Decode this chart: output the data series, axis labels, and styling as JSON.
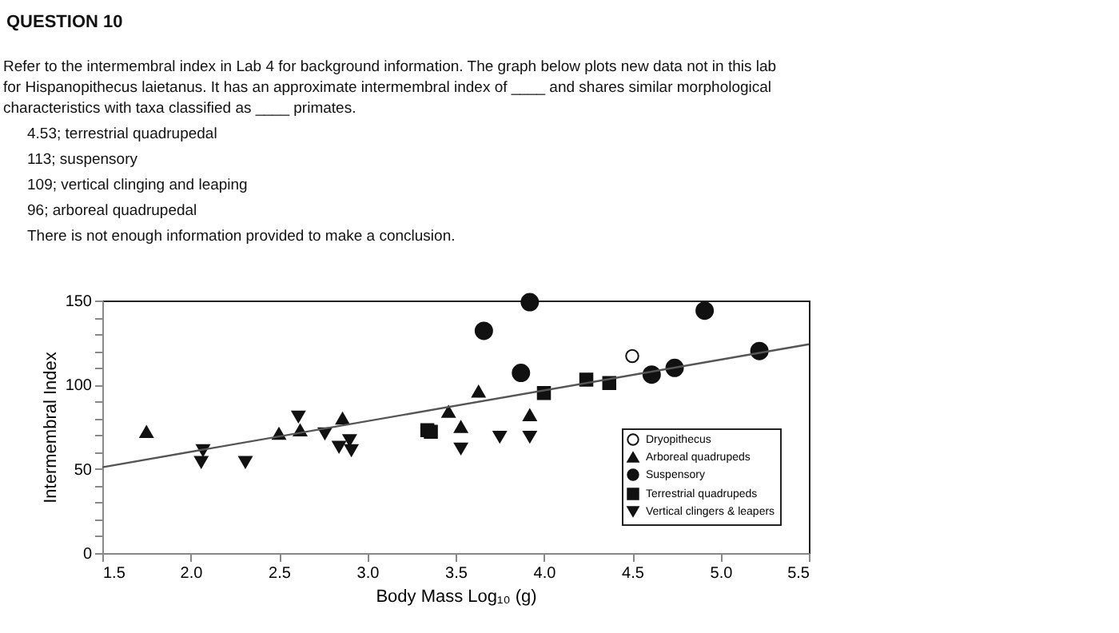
{
  "chart_data": {
    "type": "scatter",
    "title": "QUESTION 10",
    "subtitle": "Refer to the intermembral index in Lab 4 for background information. The graph below plots new data not in this lab for Hispanopithecus laietanus. It has an approximate intermembral index of ____ and shares similar morphological characteristics with taxa classified as ____ primates.",
    "annotations": [
      "4.53; terrestrial quadrupedal",
      "113; suspensory",
      "109; vertical clinging and leaping",
      "96; arboreal quadrupedal",
      "There is not enough information provided to make a conclusion."
    ],
    "xlabel": "Body Mass Log₁₀ (g)",
    "ylabel": "Intermembral Index",
    "series": [
      {
        "name": "Dryopithecus",
        "color": "#ffffff",
        "marker": "circle",
        "x": [
          4.5
        ],
        "values": [
          117
        ]
      },
      {
        "name": "Arboreal quadrupeds",
        "color": "#111111",
        "marker": "triangle",
        "x": [
          1.75,
          2.5,
          2.62,
          2.86,
          3.46,
          3.53,
          3.63,
          3.92
        ],
        "values": [
          72,
          71,
          73,
          80,
          84,
          75,
          96,
          82
        ]
      },
      {
        "name": "Suspensory",
        "color": "#111111",
        "marker": "circle",
        "x": [
          3.66,
          3.92,
          3.87,
          4.91,
          4.61,
          4.74,
          5.22
        ],
        "values": [
          132,
          149,
          107,
          144,
          106,
          110,
          120
        ]
      },
      {
        "name": "Terrestrial quadrupeds",
        "color": "#111111",
        "marker": "square",
        "x": [
          3.34,
          3.36,
          4.0,
          4.24,
          4.37
        ],
        "values": [
          73,
          72,
          95,
          103,
          101
        ]
      },
      {
        "name": "Vertical clingers & leapers",
        "color": "#111111",
        "marker": "triangle-down",
        "x": [
          2.07,
          2.06,
          2.31,
          2.61,
          2.76,
          2.84,
          2.9,
          2.91,
          3.53,
          3.75,
          3.92
        ],
        "values": [
          61,
          54,
          54,
          81,
          71,
          63,
          67,
          61,
          62,
          69,
          69
        ]
      },
      {
        "type": "line",
        "color": "#555555",
        "x": [
          1.5,
          5.5
        ],
        "values": [
          51,
          124
        ]
      }
    ],
    "xlim": [
      1.5,
      5.5
    ],
    "xticks": [
      1.5,
      {
        "value": 2,
        "label": "2.0"
      },
      2.5,
      {
        "value": 3,
        "label": "3.0"
      },
      3.5,
      {
        "value": 4,
        "label": "4.0"
      },
      4.5,
      {
        "value": 5,
        "label": "5.0"
      },
      5.5
    ],
    "ylim": [
      0,
      150
    ],
    "yticks": [
      0,
      {
        "value": 10,
        "label": null
      },
      {
        "value": 20,
        "label": null
      },
      {
        "value": 30,
        "label": null
      },
      {
        "value": 40,
        "label": null
      },
      50,
      {
        "value": 60,
        "label": null
      },
      {
        "value": 70,
        "label": null
      },
      {
        "value": 80,
        "label": null
      },
      {
        "value": 90,
        "label": null
      },
      100,
      {
        "value": 110,
        "label": null
      },
      {
        "value": 120,
        "label": null
      },
      {
        "value": 130,
        "label": null
      },
      {
        "value": 140,
        "label": null
      },
      150
    ],
    "grid": false,
    "legend": "bottom right"
  }
}
